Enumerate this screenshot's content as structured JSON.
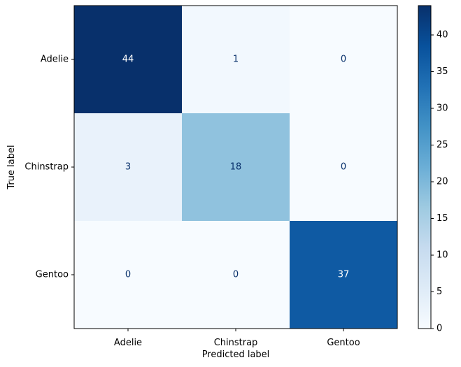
{
  "chart_data": {
    "type": "heatmap",
    "title": "",
    "xlabel": "Predicted label",
    "ylabel": "True label",
    "x_categories": [
      "Adelie",
      "Chinstrap",
      "Gentoo"
    ],
    "y_categories": [
      "Adelie",
      "Chinstrap",
      "Gentoo"
    ],
    "matrix": [
      [
        44,
        1,
        0
      ],
      [
        3,
        18,
        0
      ],
      [
        0,
        0,
        37
      ]
    ],
    "colormap": "Blues",
    "colorbar": {
      "min": 0,
      "max": 44,
      "ticks": [
        0,
        5,
        10,
        15,
        20,
        25,
        30,
        35,
        40
      ]
    },
    "text_color_dark": "#08306b",
    "text_color_light": "#ffffff"
  }
}
